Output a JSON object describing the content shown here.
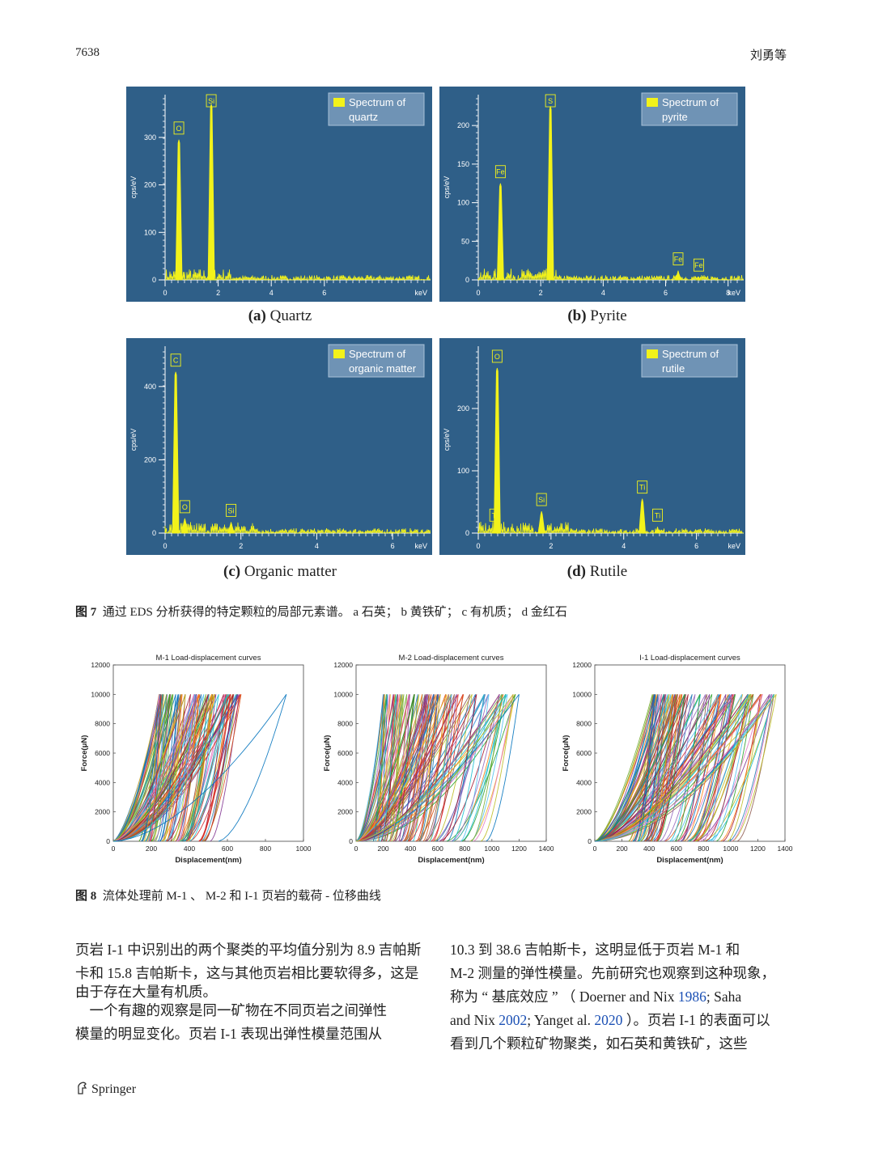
{
  "header": {
    "page_number": "7638",
    "author": "刘勇等"
  },
  "figure7": {
    "panels": [
      {
        "id": "a",
        "label_letter": "(a)",
        "label_text": " Quartz",
        "legend": [
          "Spectrum of",
          "quartz"
        ],
        "ylabel": "cps/eV",
        "xlabel": "keV",
        "xticks": [
          "0",
          "2",
          "4",
          "6"
        ],
        "yticks": [
          "0",
          "100",
          "200",
          "300"
        ],
        "peaks": [
          {
            "label": "O",
            "kev": 0.52,
            "value": 295,
            "labeled": true
          },
          {
            "label": "Si",
            "kev": 1.74,
            "value": 370,
            "labeled": true
          }
        ],
        "xmax": 10,
        "ymax": 390
      },
      {
        "id": "b",
        "label_letter": "(b)",
        "label_text": " Pyrite",
        "legend": [
          "Spectrum of",
          "pyrite"
        ],
        "ylabel": "cps/eV",
        "xlabel": "keV",
        "xticks": [
          "0",
          "2",
          "4",
          "6",
          "8"
        ],
        "yticks": [
          "0",
          "50",
          "100",
          "150",
          "200"
        ],
        "peaks": [
          {
            "label": "Fe",
            "kev": 0.71,
            "value": 125,
            "labeled": true
          },
          {
            "label": "S",
            "kev": 2.31,
            "value": 225,
            "labeled": true
          },
          {
            "label": "Fe",
            "kev": 6.4,
            "value": 12,
            "labeled": true
          },
          {
            "label": "Fe",
            "kev": 7.06,
            "value": 4,
            "labeled": true
          }
        ],
        "xmax": 8.5,
        "ymax": 240
      },
      {
        "id": "c",
        "label_letter": "(c)",
        "label_text": " Organic matter",
        "legend": [
          "Spectrum of",
          "organic matter"
        ],
        "ylabel": "cps/eV",
        "xlabel": "keV",
        "xticks": [
          "0",
          "2",
          "4",
          "6"
        ],
        "yticks": [
          "0",
          "200",
          "400"
        ],
        "peaks": [
          {
            "label": "C",
            "kev": 0.28,
            "value": 440,
            "labeled": true
          },
          {
            "label": "O",
            "kev": 0.52,
            "value": 40,
            "labeled": true
          },
          {
            "label": "Si",
            "kev": 1.74,
            "value": 30,
            "labeled": true
          }
        ],
        "xmax": 7,
        "ymax": 510
      },
      {
        "id": "d",
        "label_letter": "(d)",
        "label_text": " Rutile",
        "legend": [
          "Spectrum of",
          "rutile"
        ],
        "ylabel": "cps/eV",
        "xlabel": "keV",
        "xticks": [
          "0",
          "2",
          "4",
          "6"
        ],
        "yticks": [
          "0",
          "100",
          "200"
        ],
        "peaks": [
          {
            "label": "Ti",
            "kev": 0.45,
            "value": 10,
            "labeled": true
          },
          {
            "label": "O",
            "kev": 0.52,
            "value": 265,
            "labeled": true
          },
          {
            "label": "Si",
            "kev": 1.74,
            "value": 35,
            "labeled": true
          },
          {
            "label": "Ti",
            "kev": 4.51,
            "value": 55,
            "labeled": true
          },
          {
            "label": "Ti",
            "kev": 4.93,
            "value": 10,
            "labeled": true
          }
        ],
        "xmax": 7.3,
        "ymax": 300
      }
    ],
    "caption_label": "图 7",
    "caption_text": "通过 EDS 分析获得的特定颗粒的局部元素谱。 a 石英； b 黄铁矿； c 有机质； d 金红石"
  },
  "figure8": {
    "caption_label": "图 8",
    "caption_text": "流体处理前 M-1 、 M-2 和 I-1 页岩的载荷 - 位移曲线"
  },
  "chart_data": [
    {
      "type": "line",
      "title": "M-1 Load-displacement curves",
      "xlabel": "Displacement(nm)",
      "ylabel": "Force(μN)",
      "xlim": [
        0,
        1000
      ],
      "ylim": [
        0,
        12000
      ],
      "xticks": [
        "0",
        "200",
        "400",
        "600",
        "800",
        "1000"
      ],
      "yticks": [
        "0",
        "2000",
        "4000",
        "6000",
        "8000",
        "10000",
        "12000"
      ],
      "max_load": 10000,
      "curve_count": 80,
      "max_depth_range": [
        240,
        680
      ],
      "outlier_max_depth": 910
    },
    {
      "type": "line",
      "title": "M-2 Load-displacement curves",
      "xlabel": "Displacement(nm)",
      "ylabel": "Force(μN)",
      "xlim": [
        0,
        1400
      ],
      "ylim": [
        0,
        12000
      ],
      "xticks": [
        "0",
        "200",
        "400",
        "600",
        "800",
        "1000",
        "1200",
        "1400"
      ],
      "yticks": [
        "0",
        "2000",
        "4000",
        "6000",
        "8000",
        "10000",
        "12000"
      ],
      "max_load": 10000,
      "curve_count": 80,
      "max_depth_range": [
        200,
        1200
      ]
    },
    {
      "type": "line",
      "title": "I-1 Load-displacement curves",
      "xlabel": "Displacement(nm)",
      "ylabel": "Force(μN)",
      "xlim": [
        0,
        1400
      ],
      "ylim": [
        0,
        12000
      ],
      "xticks": [
        "0",
        "200",
        "400",
        "600",
        "800",
        "1000",
        "1200",
        "1400"
      ],
      "yticks": [
        "0",
        "2000",
        "4000",
        "6000",
        "8000",
        "10000",
        "12000"
      ],
      "max_load": 10000,
      "curve_count": 80,
      "max_depth_range": [
        420,
        1350
      ],
      "outlier_max_depth": 440
    }
  ],
  "body": {
    "left": [
      "页岩 I-1 中识别出的两个聚类的平均值分别为 8.9 吉帕斯",
      "卡和 15.8 吉帕斯卡，这与其他页岩相比要软得多，这是",
      "由于存在大量有机质。",
      "　一个有趣的观察是同一矿物在不同页岩之间弹性",
      "模量的明显变化。页岩 I-1 表现出弹性模量范围从"
    ],
    "right_line1": "10.3 到 38.6 吉帕斯卡，这明显低于页岩 M-1 和",
    "right_line2": "M-2 测量的弹性模量。先前研究也观察到这种现象，",
    "right_line3_pre": "称为 “ 基底效应 ” （ Doerner and Nix ",
    "right_line3_ref1": "1986",
    "right_line3_post": "; Saha",
    "right_line4_pre": "and Nix ",
    "right_line4_ref2": "2002",
    "right_line4_mid": "; Yanget al. ",
    "right_line4_ref3": "2020",
    "right_line4_post": " ）。页岩 I-1 的表面可以",
    "right_line5": "看到几个颗粒矿物聚类，如石英和黄铁矿，这些"
  },
  "footer": {
    "publisher": "Springer"
  },
  "colors": {
    "eds_bg": "#2f5f88",
    "eds_peak": "#f2f21a",
    "ref_link": "#1a4fb4"
  }
}
